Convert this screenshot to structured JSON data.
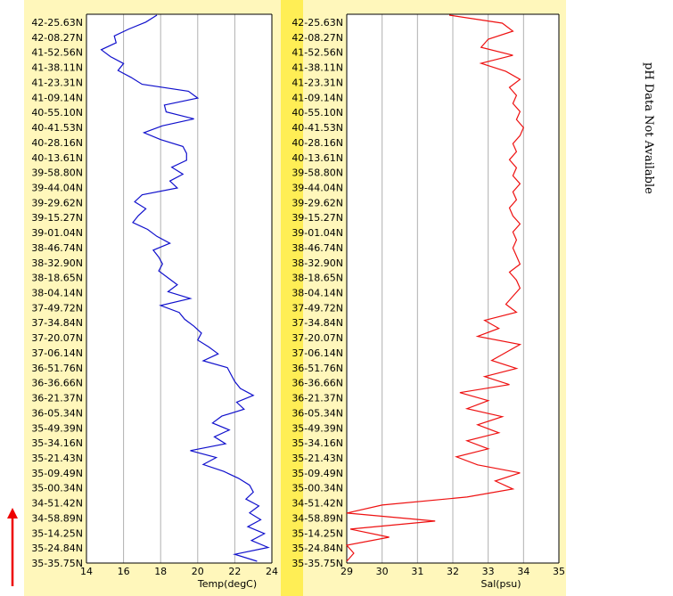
{
  "side_note": "pH Data Not Available",
  "colors": {
    "panel": "#fff7bb",
    "band": "#ffee55",
    "grid": "#b0b0b0",
    "temp": "#1010cc",
    "sal": "#ee1111",
    "arrow": "#ee0000"
  },
  "chart_data": [
    {
      "type": "line",
      "xlabel": "Temp(degC)",
      "xlim": [
        14,
        24
      ],
      "xticks": [
        14,
        16,
        18,
        20,
        22,
        24
      ],
      "ylabel_ticks": [
        "42-25.63N",
        "42-08.27N",
        "41-52.56N",
        "41-38.11N",
        "41-23.31N",
        "41-09.14N",
        "40-55.10N",
        "40-41.53N",
        "40-28.16N",
        "40-13.61N",
        "39-58.80N",
        "39-44.04N",
        "39-29.62N",
        "39-15.27N",
        "39-01.04N",
        "38-46.74N",
        "38-32.90N",
        "38-18.65N",
        "38-04.14N",
        "37-49.72N",
        "37-34.84N",
        "37-20.07N",
        "37-06.14N",
        "36-51.76N",
        "36-36.66N",
        "36-21.37N",
        "36-05.34N",
        "35-49.39N",
        "35-34.16N",
        "35-21.43N",
        "35-09.49N",
        "35-00.34N",
        "34-51.42N",
        "34-58.89N",
        "35-14.25N",
        "35-24.84N",
        "35-35.75N"
      ],
      "series": [
        {
          "values": [
            17.8,
            17.2,
            16.3,
            15.5,
            15.6,
            14.8,
            15.3,
            16.0,
            15.7,
            16.4,
            17.0,
            19.5,
            20.0,
            18.2,
            18.3,
            19.8,
            18.1,
            17.1,
            18.0,
            19.2,
            19.4,
            19.4,
            18.6,
            19.2,
            18.5,
            18.9,
            17.0,
            16.6,
            17.2,
            16.8,
            16.5,
            17.3,
            17.8,
            18.5,
            17.6,
            17.9,
            18.1,
            17.9,
            18.4,
            18.9,
            18.4,
            19.6,
            18.0,
            19.0,
            19.3,
            19.8,
            20.2,
            20.0,
            20.6,
            21.1,
            20.3,
            21.6,
            21.8,
            22.0,
            22.3,
            23.0,
            22.1,
            22.5,
            21.3,
            20.8,
            21.7,
            20.9,
            21.5,
            19.6,
            21.0,
            20.3,
            21.4,
            22.2,
            22.8,
            23.0,
            22.6,
            23.3,
            22.8,
            23.4,
            22.7,
            23.6,
            22.9,
            23.8,
            22.0,
            23.2
          ]
        }
      ]
    },
    {
      "type": "line",
      "xlabel": "Sal(psu)",
      "xlim": [
        29,
        35
      ],
      "xticks": [
        29,
        30,
        31,
        32,
        33,
        34,
        35
      ],
      "ylabel_ticks": [
        "42-25.63N",
        "42-08.27N",
        "41-52.56N",
        "41-38.11N",
        "41-23.31N",
        "41-09.14N",
        "40-55.10N",
        "40-41.53N",
        "40-28.16N",
        "40-13.61N",
        "39-58.80N",
        "39-44.04N",
        "39-29.62N",
        "39-15.27N",
        "39-01.04N",
        "38-46.74N",
        "38-32.90N",
        "38-18.65N",
        "38-04.14N",
        "37-49.72N",
        "37-34.84N",
        "37-20.07N",
        "37-06.14N",
        "36-51.76N",
        "36-36.66N",
        "36-21.37N",
        "36-05.34N",
        "35-49.39N",
        "35-34.16N",
        "35-21.43N",
        "35-09.49N",
        "35-00.34N",
        "34-51.42N",
        "34-58.89N",
        "35-14.25N",
        "35-24.84N",
        "35-35.75N"
      ],
      "series": [
        {
          "values": [
            31.9,
            33.4,
            33.7,
            33.0,
            32.8,
            33.7,
            32.8,
            33.5,
            33.9,
            33.6,
            33.8,
            33.7,
            33.9,
            33.8,
            34.0,
            33.9,
            33.7,
            33.8,
            33.6,
            33.8,
            33.7,
            33.9,
            33.7,
            33.8,
            33.6,
            33.7,
            33.9,
            33.7,
            33.8,
            33.7,
            33.8,
            33.9,
            33.6,
            33.8,
            33.9,
            33.7,
            33.5,
            33.8,
            32.9,
            33.3,
            32.7,
            33.9,
            33.5,
            33.1,
            33.8,
            32.9,
            33.6,
            32.2,
            33.0,
            32.4,
            33.4,
            32.7,
            33.3,
            32.4,
            33.0,
            32.1,
            32.7,
            33.9,
            33.2,
            33.7,
            32.4,
            30.0,
            29.0,
            31.5,
            29.1,
            30.2,
            29.0,
            29.2,
            29.0
          ]
        }
      ]
    }
  ]
}
